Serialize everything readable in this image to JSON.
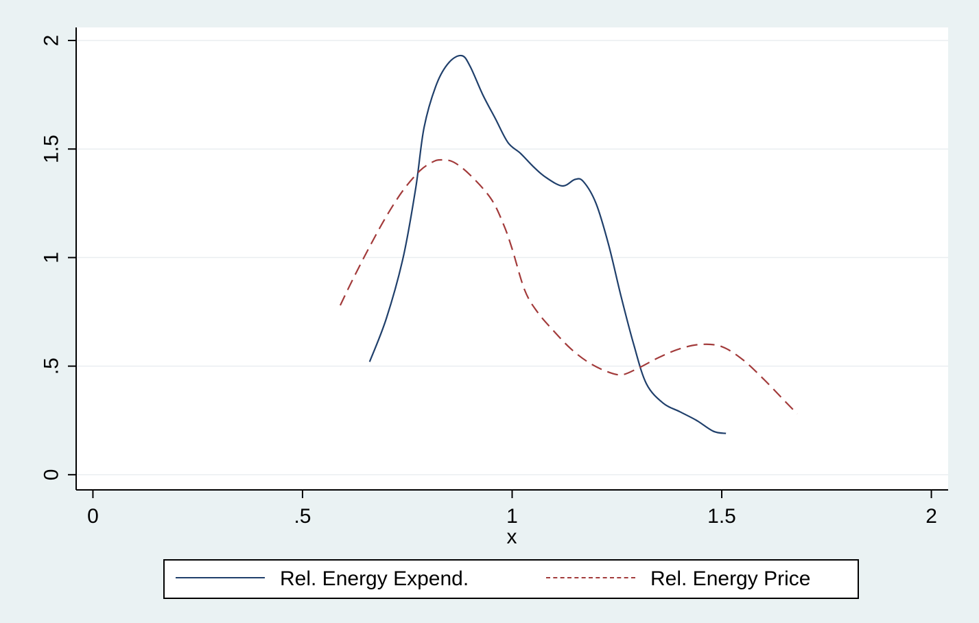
{
  "chart_data": {
    "type": "line",
    "xlabel": "x",
    "ylabel": "",
    "xlim": [
      -0.04,
      2.04
    ],
    "ylim": [
      -0.07,
      2.06
    ],
    "xticks": [
      0,
      0.5,
      1,
      1.5,
      2
    ],
    "xtick_labels": [
      "0",
      ".5",
      "1",
      "1.5",
      "2"
    ],
    "yticks": [
      0,
      0.5,
      1,
      1.5,
      2
    ],
    "ytick_labels": [
      "0",
      ".5",
      "1",
      "1.5",
      "2"
    ],
    "grid": "horizontal",
    "legend_position": "bottom",
    "series": [
      {
        "name": "Rel. Energy Expend.",
        "color": "#1f3f6b",
        "style": "solid",
        "points": [
          [
            0.66,
            0.52
          ],
          [
            0.7,
            0.72
          ],
          [
            0.74,
            1.0
          ],
          [
            0.77,
            1.32
          ],
          [
            0.79,
            1.6
          ],
          [
            0.82,
            1.8
          ],
          [
            0.85,
            1.9
          ],
          [
            0.88,
            1.93
          ],
          [
            0.9,
            1.88
          ],
          [
            0.93,
            1.75
          ],
          [
            0.96,
            1.64
          ],
          [
            0.99,
            1.53
          ],
          [
            1.02,
            1.48
          ],
          [
            1.05,
            1.42
          ],
          [
            1.08,
            1.37
          ],
          [
            1.12,
            1.33
          ],
          [
            1.15,
            1.36
          ],
          [
            1.17,
            1.35
          ],
          [
            1.2,
            1.25
          ],
          [
            1.23,
            1.06
          ],
          [
            1.26,
            0.82
          ],
          [
            1.29,
            0.6
          ],
          [
            1.32,
            0.42
          ],
          [
            1.36,
            0.33
          ],
          [
            1.4,
            0.29
          ],
          [
            1.44,
            0.25
          ],
          [
            1.48,
            0.2
          ],
          [
            1.51,
            0.19
          ]
        ]
      },
      {
        "name": "Rel. Energy Price",
        "color": "#a23a3a",
        "style": "dashed",
        "points": [
          [
            0.59,
            0.78
          ],
          [
            0.62,
            0.9
          ],
          [
            0.66,
            1.05
          ],
          [
            0.7,
            1.19
          ],
          [
            0.74,
            1.31
          ],
          [
            0.78,
            1.4
          ],
          [
            0.81,
            1.44
          ],
          [
            0.83,
            1.45
          ],
          [
            0.86,
            1.44
          ],
          [
            0.9,
            1.38
          ],
          [
            0.95,
            1.27
          ],
          [
            0.98,
            1.15
          ],
          [
            1.0,
            1.04
          ],
          [
            1.03,
            0.85
          ],
          [
            1.06,
            0.75
          ],
          [
            1.1,
            0.66
          ],
          [
            1.14,
            0.58
          ],
          [
            1.18,
            0.52
          ],
          [
            1.22,
            0.48
          ],
          [
            1.26,
            0.46
          ],
          [
            1.3,
            0.49
          ],
          [
            1.35,
            0.54
          ],
          [
            1.4,
            0.58
          ],
          [
            1.45,
            0.6
          ],
          [
            1.5,
            0.59
          ],
          [
            1.55,
            0.53
          ],
          [
            1.6,
            0.44
          ],
          [
            1.65,
            0.34
          ],
          [
            1.68,
            0.28
          ]
        ]
      }
    ]
  }
}
